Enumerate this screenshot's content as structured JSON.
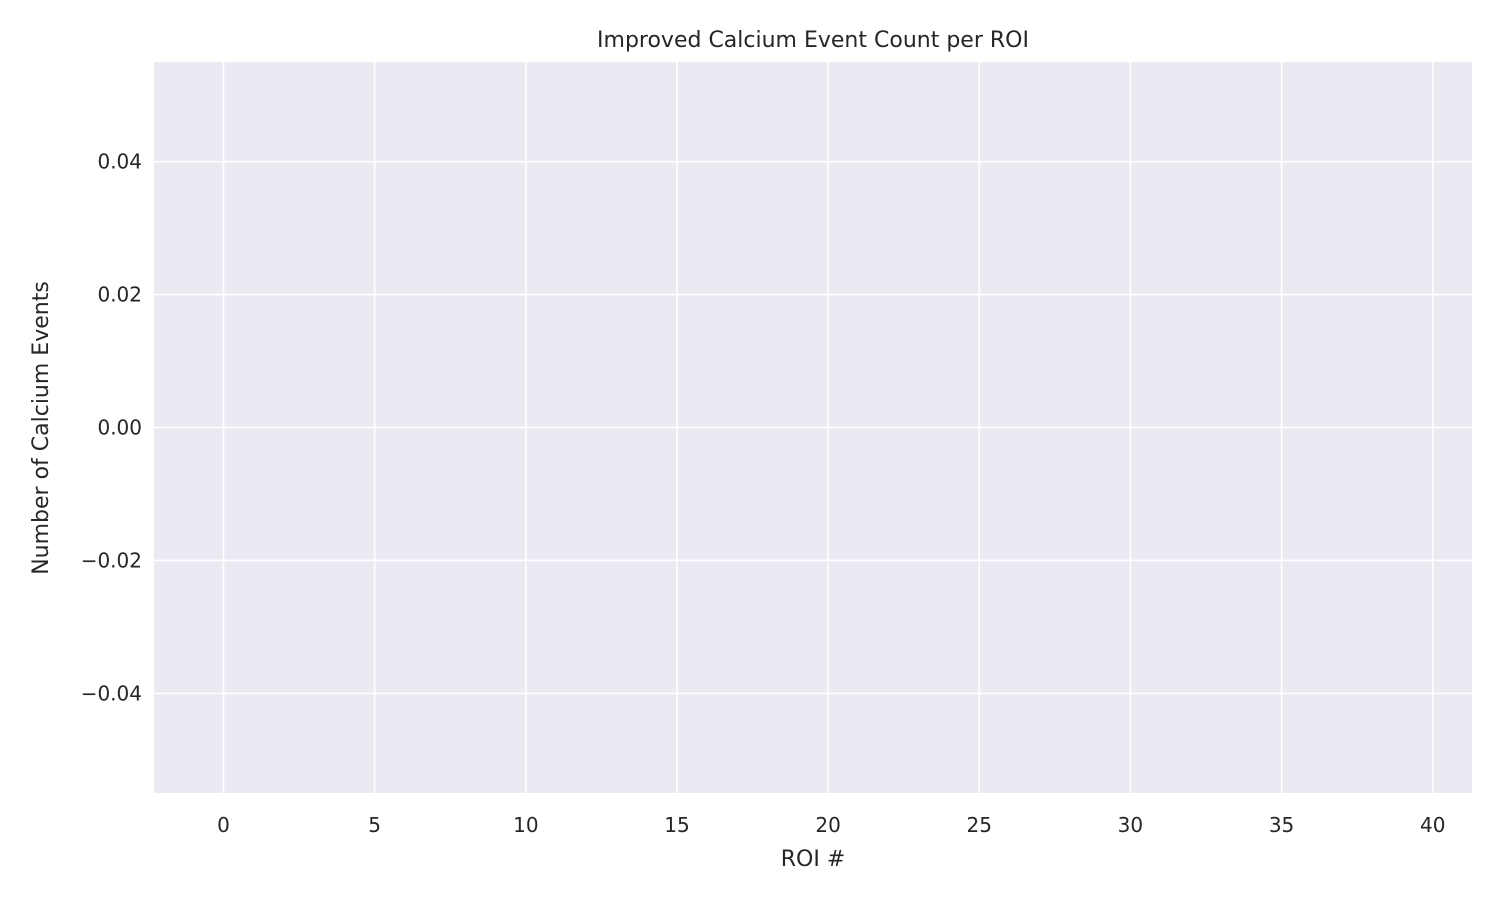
{
  "chart_data": {
    "type": "bar",
    "title": "Improved Calcium Event Count per ROI",
    "xlabel": "ROI #",
    "ylabel": "Number of Calcium Events",
    "x": [],
    "values": [],
    "xlim": [
      -2.3,
      41.3
    ],
    "ylim": [
      -0.055,
      0.055
    ],
    "xticks": [
      0,
      5,
      10,
      15,
      20,
      25,
      30,
      35,
      40
    ],
    "xtick_labels": [
      "0",
      "5",
      "10",
      "15",
      "20",
      "25",
      "30",
      "35",
      "40"
    ],
    "yticks": [
      0.04,
      0.02,
      0.0,
      -0.02,
      -0.04
    ],
    "ytick_labels": [
      "0.04",
      "0.02",
      "0.00",
      "−0.02",
      "−0.04"
    ],
    "grid": true,
    "legend": null,
    "colors": {
      "background": "#eaeaf2",
      "grid": "#ffffff",
      "text": "#262626"
    }
  }
}
